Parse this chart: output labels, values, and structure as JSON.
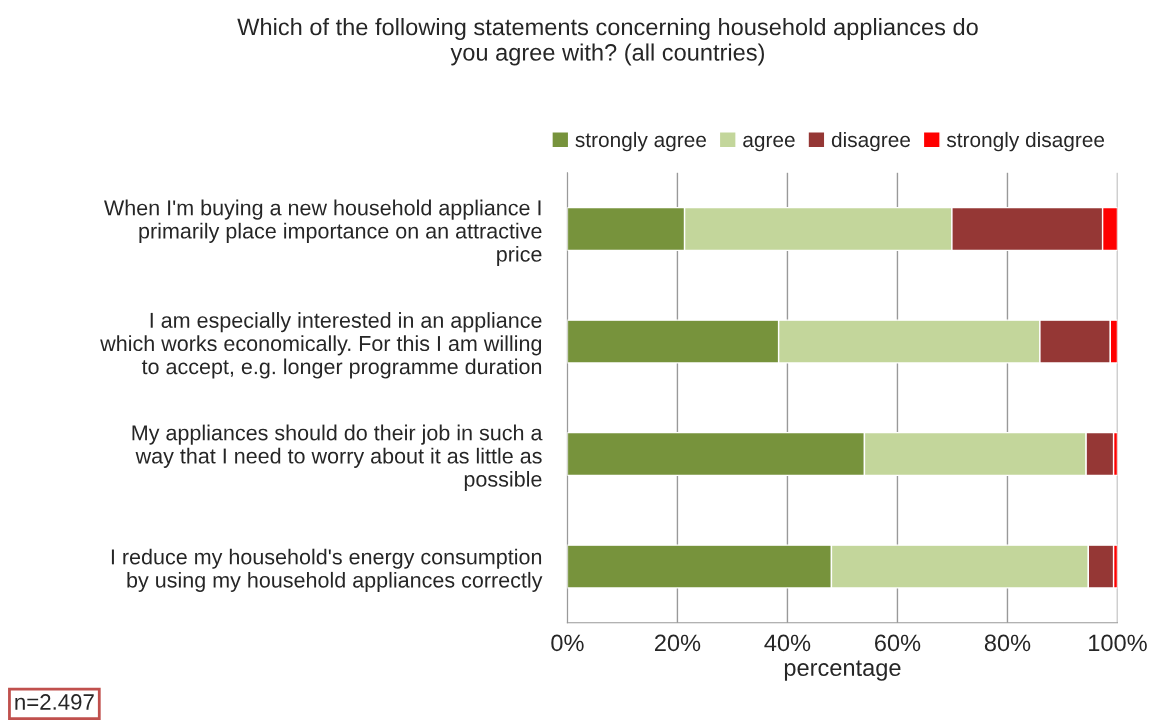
{
  "chart_data": {
    "type": "bar",
    "orientation": "horizontal",
    "stacked": true,
    "title": "Which of the following statements concerning household appliances do\nyou agree with? (all countries)",
    "xlabel": "percentage",
    "categories": [
      "When I'm buying a new household appliance I\nprimarily place importance on an attractive\nprice",
      "I am especially interested in an appliance\nwhich works economically. For this I am willing\nto accept, e.g. longer programme duration",
      "My appliances should do their job in such a\nway that I need to worry about it as little as\npossible",
      "I reduce my household's energy consumption\nby using my household appliances correctly"
    ],
    "series": [
      {
        "name": "strongly agree",
        "color": "#77933c",
        "values": [
          21.3,
          38.4,
          54.0,
          48.0
        ]
      },
      {
        "name": "agree",
        "color": "#c3d69b",
        "values": [
          48.6,
          47.5,
          40.3,
          46.7
        ]
      },
      {
        "name": "disagree",
        "color": "#953735",
        "values": [
          27.4,
          12.8,
          5.0,
          4.6
        ]
      },
      {
        "name": "strongly disagree",
        "color": "#ff0000",
        "values": [
          2.7,
          1.3,
          0.7,
          0.7
        ]
      }
    ],
    "xlim": [
      0,
      100
    ],
    "xticks": [
      {
        "value": 0,
        "label": "0%"
      },
      {
        "value": 20,
        "label": "20%"
      },
      {
        "value": 40,
        "label": "40%"
      },
      {
        "value": 60,
        "label": "60%"
      },
      {
        "value": 80,
        "label": "80%"
      },
      {
        "value": 100,
        "label": "100%"
      }
    ],
    "grid": "x",
    "legend": "top",
    "annotations": [
      "n=2.497"
    ]
  }
}
